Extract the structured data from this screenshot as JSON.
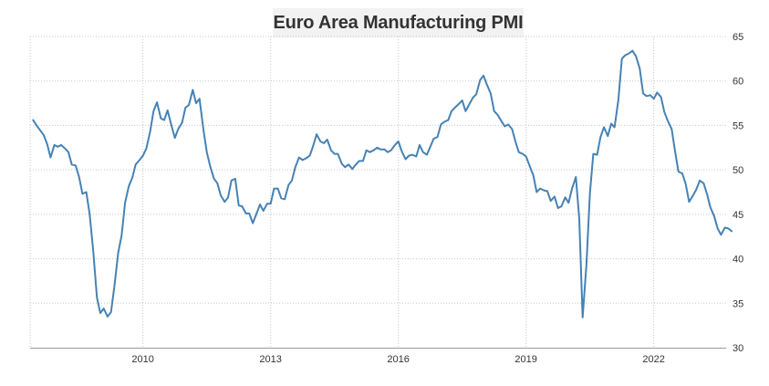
{
  "chart_data": {
    "type": "line",
    "title": "Euro Area Manufacturing PMI",
    "xlabel": "",
    "ylabel": "",
    "ylim": [
      30,
      65
    ],
    "xlim": [
      2007.35,
      2023.7
    ],
    "y_ticks": [
      30,
      35,
      40,
      45,
      50,
      55,
      60,
      65
    ],
    "x_ticks": [
      2010,
      2013,
      2016,
      2019,
      2022
    ],
    "x_tick_labels": [
      "2010",
      "2013",
      "2016",
      "2019",
      "2022"
    ],
    "y_axis_position": "right",
    "grid": "dotted",
    "legend": "none",
    "line_color": "#4682b4",
    "series": [
      {
        "values": [
          [
            2007.42,
            55.6
          ],
          [
            2007.5,
            55.0
          ],
          [
            2007.58,
            54.5
          ],
          [
            2007.67,
            53.9
          ],
          [
            2007.75,
            52.9
          ],
          [
            2007.83,
            51.4
          ],
          [
            2007.92,
            52.8
          ],
          [
            2008.0,
            52.6
          ],
          [
            2008.08,
            52.8
          ],
          [
            2008.17,
            52.4
          ],
          [
            2008.25,
            52.0
          ],
          [
            2008.33,
            50.6
          ],
          [
            2008.42,
            50.5
          ],
          [
            2008.5,
            49.2
          ],
          [
            2008.58,
            47.3
          ],
          [
            2008.67,
            47.5
          ],
          [
            2008.75,
            45.0
          ],
          [
            2008.83,
            41.0
          ],
          [
            2008.92,
            35.6
          ],
          [
            2009.0,
            33.9
          ],
          [
            2009.08,
            34.4
          ],
          [
            2009.17,
            33.5
          ],
          [
            2009.25,
            34.0
          ],
          [
            2009.33,
            36.9
          ],
          [
            2009.42,
            40.7
          ],
          [
            2009.5,
            42.6
          ],
          [
            2009.58,
            46.3
          ],
          [
            2009.67,
            48.2
          ],
          [
            2009.75,
            49.1
          ],
          [
            2009.83,
            50.6
          ],
          [
            2009.92,
            51.1
          ],
          [
            2010.0,
            51.6
          ],
          [
            2010.08,
            52.4
          ],
          [
            2010.17,
            54.3
          ],
          [
            2010.25,
            56.6
          ],
          [
            2010.33,
            57.6
          ],
          [
            2010.42,
            55.8
          ],
          [
            2010.5,
            55.6
          ],
          [
            2010.58,
            56.7
          ],
          [
            2010.67,
            55.0
          ],
          [
            2010.75,
            53.6
          ],
          [
            2010.83,
            54.6
          ],
          [
            2010.92,
            55.3
          ],
          [
            2011.0,
            57.0
          ],
          [
            2011.08,
            57.3
          ],
          [
            2011.17,
            59.0
          ],
          [
            2011.25,
            57.5
          ],
          [
            2011.33,
            58.0
          ],
          [
            2011.42,
            54.6
          ],
          [
            2011.5,
            52.0
          ],
          [
            2011.58,
            50.4
          ],
          [
            2011.67,
            49.0
          ],
          [
            2011.75,
            48.5
          ],
          [
            2011.83,
            47.1
          ],
          [
            2011.92,
            46.4
          ],
          [
            2012.0,
            46.9
          ],
          [
            2012.08,
            48.8
          ],
          [
            2012.17,
            49.0
          ],
          [
            2012.25,
            46.0
          ],
          [
            2012.33,
            45.9
          ],
          [
            2012.42,
            45.1
          ],
          [
            2012.5,
            45.1
          ],
          [
            2012.58,
            44.0
          ],
          [
            2012.67,
            45.1
          ],
          [
            2012.75,
            46.1
          ],
          [
            2012.83,
            45.4
          ],
          [
            2012.92,
            46.2
          ],
          [
            2013.0,
            46.2
          ],
          [
            2013.08,
            47.9
          ],
          [
            2013.17,
            47.9
          ],
          [
            2013.25,
            46.8
          ],
          [
            2013.33,
            46.7
          ],
          [
            2013.42,
            48.3
          ],
          [
            2013.5,
            48.8
          ],
          [
            2013.58,
            50.3
          ],
          [
            2013.67,
            51.4
          ],
          [
            2013.75,
            51.1
          ],
          [
            2013.83,
            51.3
          ],
          [
            2013.92,
            51.6
          ],
          [
            2014.0,
            52.7
          ],
          [
            2014.08,
            54.0
          ],
          [
            2014.17,
            53.2
          ],
          [
            2014.25,
            53.0
          ],
          [
            2014.33,
            53.4
          ],
          [
            2014.42,
            52.2
          ],
          [
            2014.5,
            51.8
          ],
          [
            2014.58,
            51.8
          ],
          [
            2014.67,
            50.7
          ],
          [
            2014.75,
            50.3
          ],
          [
            2014.83,
            50.6
          ],
          [
            2014.92,
            50.1
          ],
          [
            2015.0,
            50.6
          ],
          [
            2015.08,
            51.0
          ],
          [
            2015.17,
            51.0
          ],
          [
            2015.25,
            52.2
          ],
          [
            2015.33,
            52.0
          ],
          [
            2015.42,
            52.2
          ],
          [
            2015.5,
            52.5
          ],
          [
            2015.58,
            52.3
          ],
          [
            2015.67,
            52.3
          ],
          [
            2015.75,
            52.0
          ],
          [
            2015.83,
            52.2
          ],
          [
            2015.92,
            52.8
          ],
          [
            2016.0,
            53.2
          ],
          [
            2016.08,
            52.1
          ],
          [
            2016.17,
            51.2
          ],
          [
            2016.25,
            51.6
          ],
          [
            2016.33,
            51.7
          ],
          [
            2016.42,
            51.5
          ],
          [
            2016.5,
            52.8
          ],
          [
            2016.58,
            52.0
          ],
          [
            2016.67,
            51.7
          ],
          [
            2016.75,
            52.6
          ],
          [
            2016.83,
            53.5
          ],
          [
            2016.92,
            53.7
          ],
          [
            2017.0,
            55.1
          ],
          [
            2017.08,
            55.4
          ],
          [
            2017.17,
            55.6
          ],
          [
            2017.25,
            56.6
          ],
          [
            2017.33,
            57.0
          ],
          [
            2017.42,
            57.4
          ],
          [
            2017.5,
            57.8
          ],
          [
            2017.58,
            56.6
          ],
          [
            2017.67,
            57.4
          ],
          [
            2017.75,
            58.1
          ],
          [
            2017.83,
            58.5
          ],
          [
            2017.92,
            60.1
          ],
          [
            2018.0,
            60.6
          ],
          [
            2018.08,
            59.6
          ],
          [
            2018.17,
            58.6
          ],
          [
            2018.25,
            56.6
          ],
          [
            2018.33,
            56.2
          ],
          [
            2018.42,
            55.5
          ],
          [
            2018.5,
            54.9
          ],
          [
            2018.58,
            55.1
          ],
          [
            2018.67,
            54.6
          ],
          [
            2018.75,
            53.2
          ],
          [
            2018.83,
            52.0
          ],
          [
            2018.92,
            51.8
          ],
          [
            2019.0,
            51.5
          ],
          [
            2019.08,
            50.5
          ],
          [
            2019.17,
            49.4
          ],
          [
            2019.25,
            47.5
          ],
          [
            2019.33,
            47.9
          ],
          [
            2019.42,
            47.7
          ],
          [
            2019.5,
            47.6
          ],
          [
            2019.58,
            46.5
          ],
          [
            2019.67,
            47.0
          ],
          [
            2019.75,
            45.7
          ],
          [
            2019.83,
            45.9
          ],
          [
            2019.92,
            46.9
          ],
          [
            2020.0,
            46.3
          ],
          [
            2020.08,
            47.9
          ],
          [
            2020.17,
            49.2
          ],
          [
            2020.25,
            44.5
          ],
          [
            2020.33,
            33.4
          ],
          [
            2020.42,
            39.4
          ],
          [
            2020.5,
            47.4
          ],
          [
            2020.58,
            51.8
          ],
          [
            2020.67,
            51.7
          ],
          [
            2020.75,
            53.7
          ],
          [
            2020.83,
            54.8
          ],
          [
            2020.92,
            53.8
          ],
          [
            2021.0,
            55.2
          ],
          [
            2021.08,
            54.8
          ],
          [
            2021.17,
            57.9
          ],
          [
            2021.25,
            62.5
          ],
          [
            2021.33,
            62.9
          ],
          [
            2021.42,
            63.1
          ],
          [
            2021.5,
            63.4
          ],
          [
            2021.58,
            62.8
          ],
          [
            2021.67,
            61.4
          ],
          [
            2021.75,
            58.6
          ],
          [
            2021.83,
            58.3
          ],
          [
            2021.92,
            58.4
          ],
          [
            2022.0,
            58.0
          ],
          [
            2022.08,
            58.7
          ],
          [
            2022.17,
            58.2
          ],
          [
            2022.25,
            56.5
          ],
          [
            2022.33,
            55.5
          ],
          [
            2022.42,
            54.6
          ],
          [
            2022.5,
            52.1
          ],
          [
            2022.58,
            49.8
          ],
          [
            2022.67,
            49.6
          ],
          [
            2022.75,
            48.4
          ],
          [
            2022.83,
            46.4
          ],
          [
            2022.92,
            47.1
          ],
          [
            2023.0,
            47.8
          ],
          [
            2023.08,
            48.8
          ],
          [
            2023.17,
            48.5
          ],
          [
            2023.25,
            47.3
          ],
          [
            2023.33,
            45.8
          ],
          [
            2023.42,
            44.8
          ],
          [
            2023.5,
            43.4
          ],
          [
            2023.58,
            42.7
          ],
          [
            2023.67,
            43.5
          ],
          [
            2023.75,
            43.4
          ],
          [
            2023.83,
            43.1
          ]
        ]
      }
    ]
  }
}
